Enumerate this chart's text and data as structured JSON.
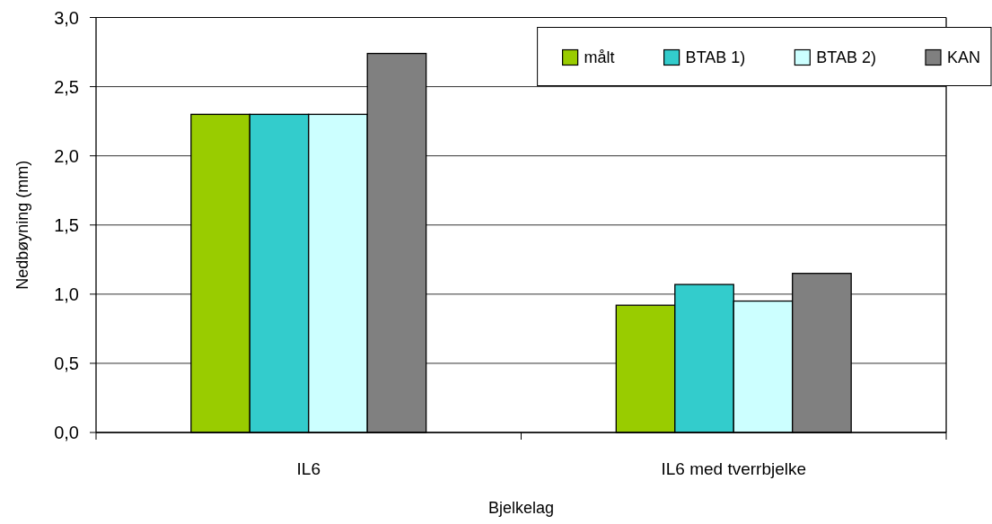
{
  "chart_data": {
    "type": "bar",
    "xlabel": "Bjelkelag",
    "ylabel": "Nedbøyning (mm)",
    "categories": [
      "IL6",
      "IL6 med tverrbjelke"
    ],
    "series": [
      {
        "name": "målt",
        "color": "#99cc00",
        "values": [
          2.3,
          0.92
        ]
      },
      {
        "name": "BTAB 1)",
        "color": "#33cccc",
        "values": [
          2.3,
          1.07
        ]
      },
      {
        "name": "BTAB 2)",
        "color": "#ccffff",
        "values": [
          2.3,
          0.95
        ]
      },
      {
        "name": "KAN",
        "color": "#808080",
        "values": [
          2.74,
          1.15
        ]
      }
    ],
    "ylim": [
      0,
      3
    ],
    "yticks": [
      {
        "value": 0,
        "label": "0,0"
      },
      {
        "value": 0.5,
        "label": "0,5"
      },
      {
        "value": 1,
        "label": "1,0"
      },
      {
        "value": 1.5,
        "label": "1,5"
      },
      {
        "value": 2,
        "label": "2,0"
      },
      {
        "value": 2.5,
        "label": "2,5"
      },
      {
        "value": 3,
        "label": "3,0"
      }
    ],
    "grid": "y",
    "legend": "top right"
  }
}
